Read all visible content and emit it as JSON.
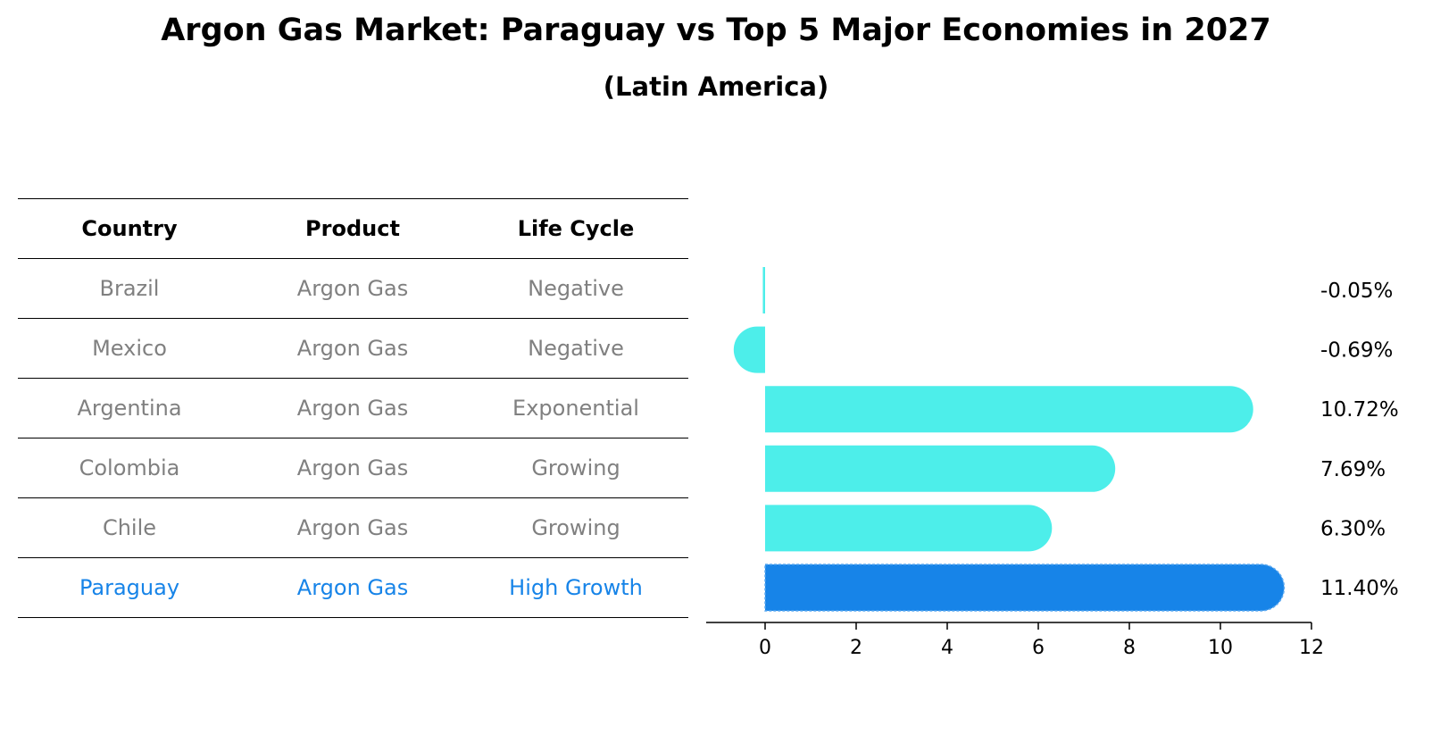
{
  "title": "Argon Gas Market: Paraguay vs Top 5 Major Economies in 2027",
  "subtitle": "(Latin America)",
  "table": {
    "headers": [
      "Country",
      "Product",
      "Life Cycle"
    ],
    "rows": [
      [
        "Brazil",
        "Argon Gas",
        "Negative"
      ],
      [
        "Mexico",
        "Argon Gas",
        "Negative"
      ],
      [
        "Argentina",
        "Argon Gas",
        "Exponential"
      ],
      [
        "Colombia",
        "Argon Gas",
        "Growing"
      ],
      [
        "Chile",
        "Argon Gas",
        "Growing"
      ],
      [
        "Paraguay",
        "Argon Gas",
        "High Growth"
      ]
    ]
  },
  "colors": {
    "bar": "#4deeea",
    "highlight": "#1784e8",
    "muted_text": "#808080"
  },
  "chart_data": {
    "type": "bar",
    "orientation": "horizontal",
    "categories": [
      "Brazil",
      "Mexico",
      "Argentina",
      "Colombia",
      "Chile",
      "Paraguay"
    ],
    "values": [
      -0.05,
      -0.69,
      10.72,
      7.69,
      6.3,
      11.4
    ],
    "value_labels": [
      "-0.05%",
      "-0.69%",
      "10.72%",
      "7.69%",
      "6.30%",
      "11.40%"
    ],
    "highlight_category": "Paraguay",
    "xlim": [
      -1.3,
      12
    ],
    "xticks": [
      0,
      2,
      4,
      6,
      8,
      10,
      12
    ],
    "grid": false
  }
}
